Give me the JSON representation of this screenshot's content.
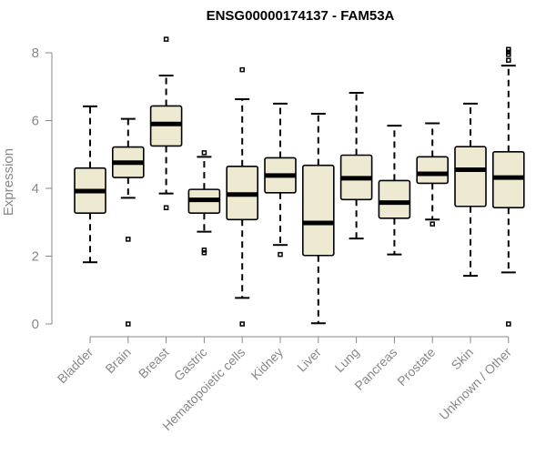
{
  "chart_data": {
    "type": "boxplot",
    "title": "ENSG00000174137 - FAM53A",
    "xlabel": "",
    "ylabel": "Expression",
    "ylim": [
      0,
      8.4
    ],
    "yticks": [
      0,
      2,
      4,
      6,
      8
    ],
    "categories": [
      "Bladder",
      "Brain",
      "Breast",
      "Gastric",
      "Hematopoietic cells",
      "Kidney",
      "Liver",
      "Lung",
      "Pancreas",
      "Prostate",
      "Skin",
      "Unknown / Other"
    ],
    "boxes": [
      {
        "name": "Bladder",
        "whisker_low": 1.82,
        "q1": 3.27,
        "median": 3.92,
        "q3": 4.6,
        "whisker_high": 6.42,
        "outliers": []
      },
      {
        "name": "Brain",
        "whisker_low": 3.72,
        "q1": 4.32,
        "median": 4.76,
        "q3": 5.22,
        "whisker_high": 6.05,
        "outliers": [
          2.5,
          0.0
        ]
      },
      {
        "name": "Breast",
        "whisker_low": 3.85,
        "q1": 5.25,
        "median": 5.9,
        "q3": 6.43,
        "whisker_high": 7.33,
        "outliers": [
          8.4,
          3.43
        ]
      },
      {
        "name": "Gastric",
        "whisker_low": 2.72,
        "q1": 3.27,
        "median": 3.66,
        "q3": 3.97,
        "whisker_high": 4.93,
        "outliers": [
          5.05,
          2.18,
          2.1
        ]
      },
      {
        "name": "Hematopoietic cells",
        "whisker_low": 0.77,
        "q1": 3.08,
        "median": 3.82,
        "q3": 4.65,
        "whisker_high": 6.63,
        "outliers": [
          7.5,
          0.0
        ]
      },
      {
        "name": "Kidney",
        "whisker_low": 2.33,
        "q1": 3.87,
        "median": 4.38,
        "q3": 4.9,
        "whisker_high": 6.5,
        "outliers": [
          2.05
        ]
      },
      {
        "name": "Liver",
        "whisker_low": 0.02,
        "q1": 2.02,
        "median": 2.98,
        "q3": 4.68,
        "whisker_high": 6.2,
        "outliers": []
      },
      {
        "name": "Lung",
        "whisker_low": 2.52,
        "q1": 3.67,
        "median": 4.3,
        "q3": 4.98,
        "whisker_high": 6.82,
        "outliers": []
      },
      {
        "name": "Pancreas",
        "whisker_low": 2.05,
        "q1": 3.12,
        "median": 3.58,
        "q3": 4.23,
        "whisker_high": 5.85,
        "outliers": []
      },
      {
        "name": "Prostate",
        "whisker_low": 3.08,
        "q1": 4.15,
        "median": 4.43,
        "q3": 4.93,
        "whisker_high": 5.92,
        "outliers": [
          2.95
        ]
      },
      {
        "name": "Skin",
        "whisker_low": 1.42,
        "q1": 3.47,
        "median": 4.55,
        "q3": 5.23,
        "whisker_high": 6.5,
        "outliers": []
      },
      {
        "name": "Unknown / Other",
        "whisker_low": 1.52,
        "q1": 3.43,
        "median": 4.32,
        "q3": 5.08,
        "whisker_high": 7.62,
        "outliers": [
          7.78,
          7.95,
          8.02,
          8.1,
          0.0
        ]
      }
    ]
  }
}
